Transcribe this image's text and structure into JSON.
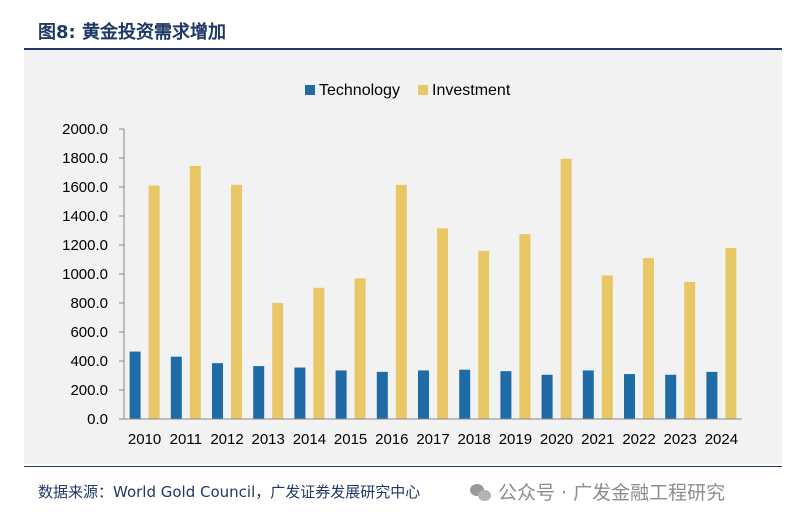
{
  "header": {
    "figure_title": "图8:  黄金投资需求增加"
  },
  "footer": {
    "source_text": "数据来源：World Gold Council，广发证券发展研究中心",
    "watermark_text": "公众号 · 广发金融工程研究",
    "watermark_icon": "wechat-icon"
  },
  "colors": {
    "technology": "#1f6ba6",
    "investment": "#e8c766",
    "title": "#1f3864",
    "plot_background": "#f2f2f2"
  },
  "chart_data": {
    "type": "bar",
    "categories": [
      "2010",
      "2011",
      "2012",
      "2013",
      "2014",
      "2015",
      "2016",
      "2017",
      "2018",
      "2019",
      "2020",
      "2021",
      "2022",
      "2023",
      "2024"
    ],
    "series": [
      {
        "name": "Technology",
        "values": [
          465,
          430,
          385,
          365,
          355,
          335,
          325,
          335,
          340,
          330,
          305,
          335,
          310,
          305,
          325
        ]
      },
      {
        "name": "Investment",
        "values": [
          1610,
          1745,
          1615,
          800,
          905,
          970,
          1615,
          1315,
          1160,
          1275,
          1795,
          990,
          1110,
          945,
          1180
        ]
      }
    ],
    "y_tick_labels": [
      "0.0",
      "200.0",
      "400.0",
      "600.0",
      "800.0",
      "1000.0",
      "1200.0",
      "1400.0",
      "1600.0",
      "1800.0",
      "2000.0"
    ],
    "ylim": [
      0,
      2000
    ],
    "grid": false,
    "legend_position": "top-center"
  }
}
